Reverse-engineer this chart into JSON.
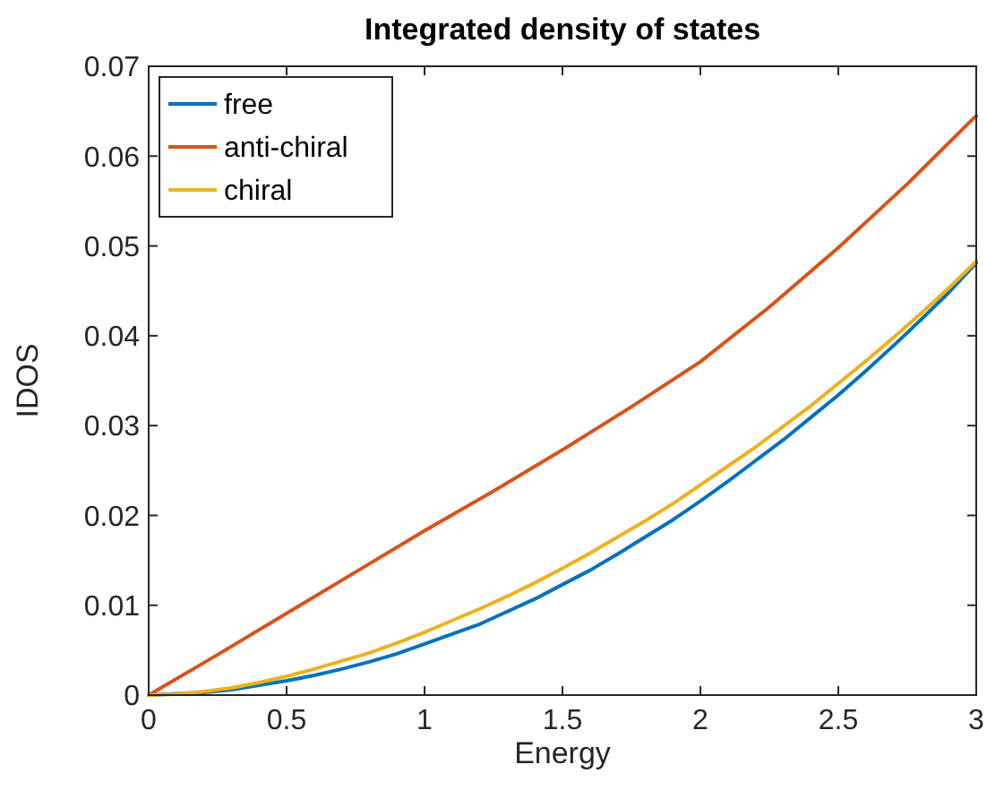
{
  "chart_data": {
    "type": "line",
    "title": "Integrated density of states",
    "xlabel": "Energy",
    "ylabel": "IDOS",
    "xlim": [
      0,
      3
    ],
    "ylim": [
      0,
      0.07
    ],
    "xticks": [
      0,
      0.5,
      1,
      1.5,
      2,
      2.5,
      3
    ],
    "yticks": [
      0,
      0.01,
      0.02,
      0.03,
      0.04,
      0.05,
      0.06,
      0.07
    ],
    "legend": "top left",
    "grid": false,
    "line_style": "solid",
    "marker": "none",
    "x": [
      0,
      0.1,
      0.2,
      0.3,
      0.4,
      0.5,
      0.6,
      0.7,
      0.8,
      0.9,
      1,
      1.1,
      1.2,
      1.3,
      1.4,
      1.5,
      1.6,
      1.7,
      1.8,
      1.9,
      2,
      2.1,
      2.2,
      2.3,
      2.4,
      2.5,
      2.6,
      2.7,
      2.8,
      2.9,
      3
    ],
    "series": [
      {
        "name": "free",
        "color": "#0072bd",
        "values": [
          0,
          null,
          0.0003,
          0.0006,
          0.0011,
          0.0016,
          0.0022,
          0.0029,
          0.0037,
          0.0046,
          0.0057,
          0.0068,
          0.0079,
          0.0093,
          0.0107,
          0.0123,
          0.0139,
          0.0157,
          0.0176,
          0.0195,
          0.0216,
          0.0238,
          0.0261,
          0.0284,
          0.0309,
          0.0334,
          0.0361,
          0.0389,
          0.0418,
          0.0448,
          0.0481
        ]
      },
      {
        "name": "anti-chiral",
        "color": "#d95319",
        "x": [
          0,
          0.25,
          0.5,
          0.75,
          1,
          1.25,
          1.5,
          1.75,
          2,
          2.25,
          2.5,
          2.75,
          3
        ],
        "values": [
          0,
          0.0045,
          0.0091,
          0.0137,
          0.0183,
          0.0227,
          0.0273,
          0.0321,
          0.0371,
          0.0432,
          0.0498,
          0.0569,
          0.0645
        ]
      },
      {
        "name": "chiral",
        "color": "#edb120",
        "values": [
          0,
          0.0001,
          0.0004,
          0.0008,
          0.0014,
          0.0021,
          0.0029,
          0.0038,
          0.0047,
          0.0058,
          0.007,
          0.0083,
          0.0096,
          0.011,
          0.0125,
          0.0141,
          0.0158,
          0.0176,
          0.0194,
          0.0213,
          0.0234,
          0.0255,
          0.0276,
          0.0299,
          0.0322,
          0.0347,
          0.0372,
          0.0398,
          0.0425,
          0.0453,
          0.0483
        ]
      }
    ]
  }
}
